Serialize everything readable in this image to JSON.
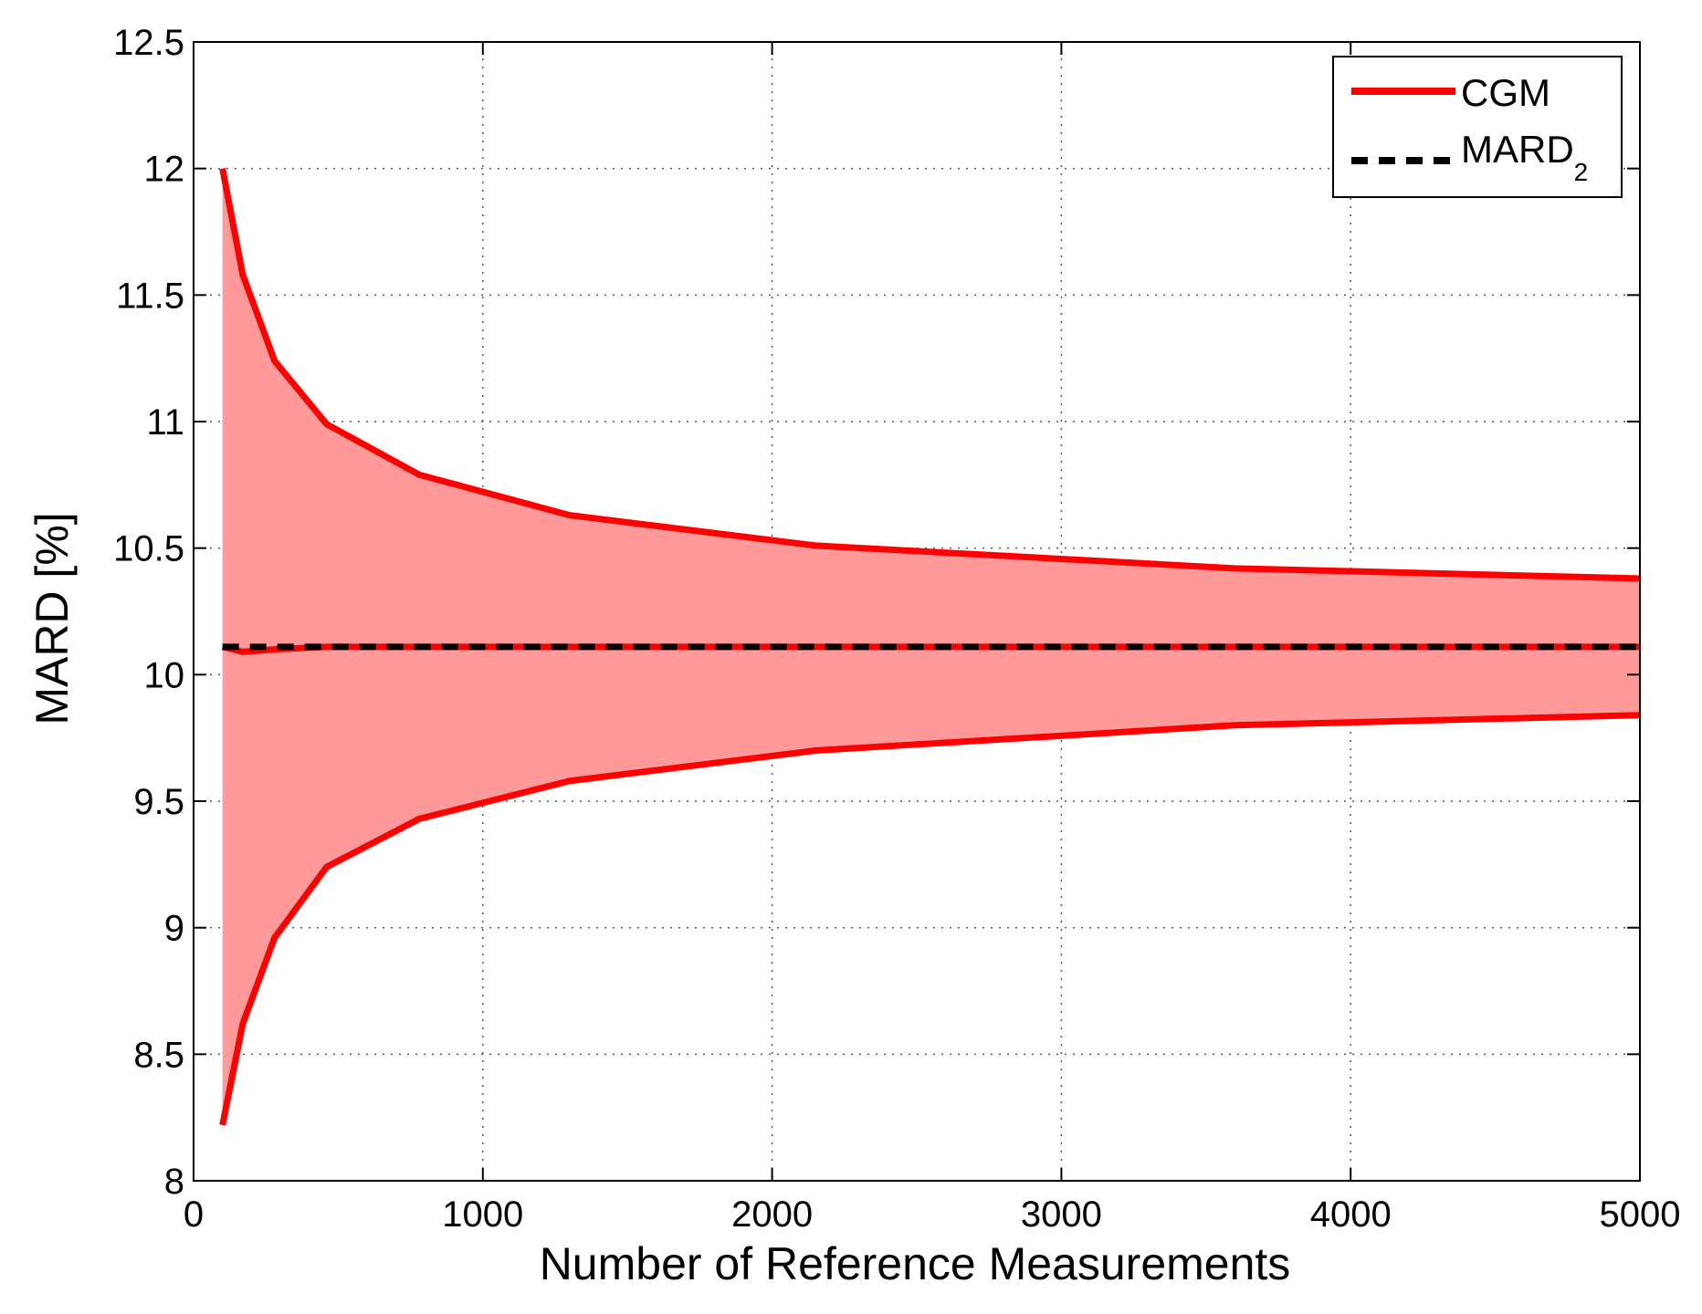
{
  "chart_data": {
    "type": "line",
    "title": "",
    "xlabel": "Number of Reference Measurements",
    "ylabel": "MARD [%]",
    "xlim": [
      0,
      5000
    ],
    "ylim": [
      8,
      12.5
    ],
    "x_ticks": [
      0,
      1000,
      2000,
      3000,
      4000,
      5000
    ],
    "x_tick_labels": [
      "0",
      "1000",
      "2000",
      "3000",
      "4000",
      "5000"
    ],
    "y_ticks": [
      8,
      8.5,
      9,
      9.5,
      10,
      10.5,
      11,
      11.5,
      12,
      12.5
    ],
    "y_tick_labels": [
      "8",
      "8.5",
      "9",
      "9.5",
      "10",
      "10.5",
      "11",
      "11.5",
      "12",
      "12.5"
    ],
    "grid": true,
    "legend_position": "top-right",
    "series": [
      {
        "name": "CGM",
        "style": "solid",
        "color": "#ff0000",
        "fill_color": "#ff9a9a",
        "x": [
          100,
          170,
          280,
          460,
          780,
          1300,
          2150,
          3600,
          5000
        ],
        "upper": [
          12.0,
          11.58,
          11.24,
          10.99,
          10.79,
          10.63,
          10.51,
          10.42,
          10.38
        ],
        "mean": [
          10.11,
          10.09,
          10.1,
          10.11,
          10.11,
          10.11,
          10.11,
          10.11,
          10.11
        ],
        "lower": [
          8.22,
          8.62,
          8.96,
          9.24,
          9.43,
          9.58,
          9.7,
          9.8,
          9.84
        ]
      },
      {
        "name": "MARD2",
        "legend_main": "MARD",
        "legend_sub": "2",
        "style": "dashed",
        "color": "#000000",
        "x": [
          100,
          5000
        ],
        "values": [
          10.11,
          10.11
        ]
      }
    ]
  }
}
